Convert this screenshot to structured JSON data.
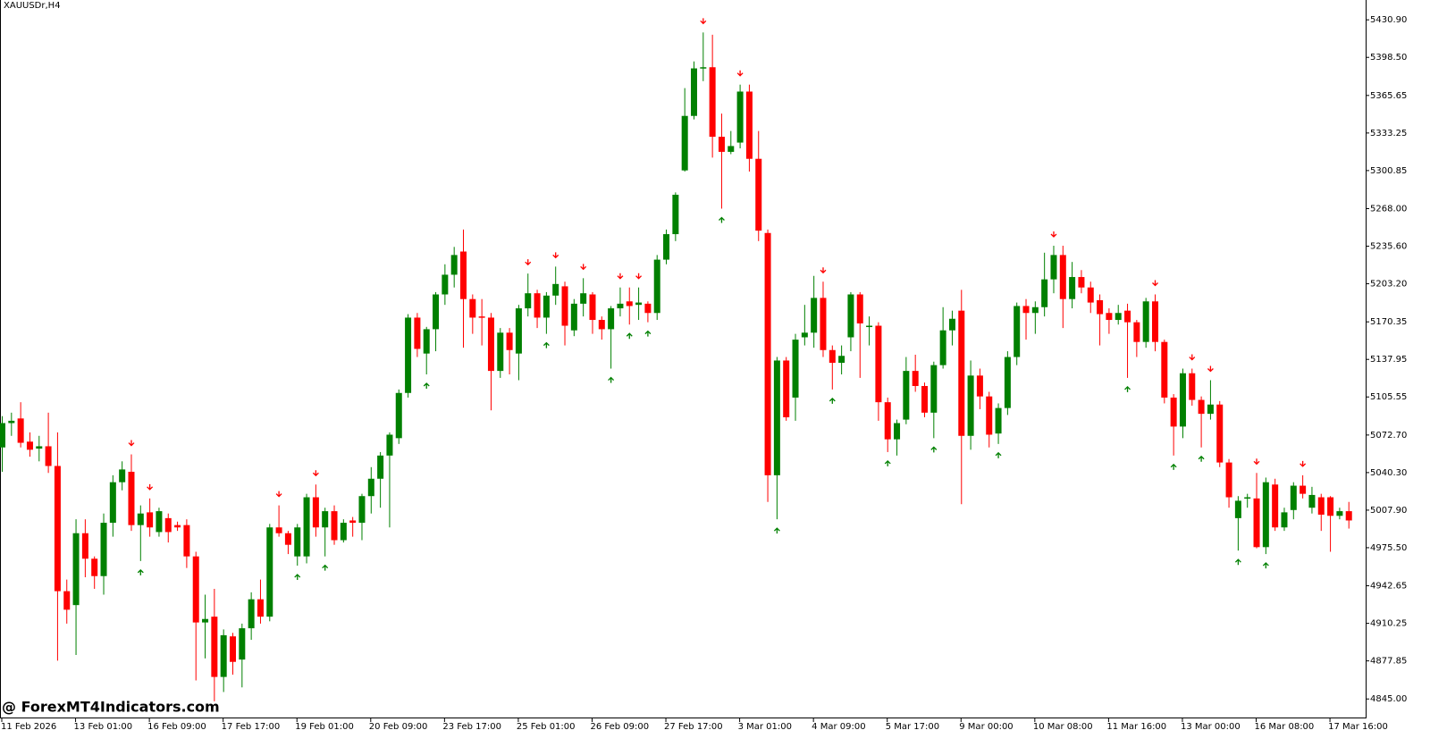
{
  "chart_data": {
    "type": "candlestick",
    "title": "XAUUSDr,H4",
    "watermark": "@ ForexMT4Indicators.com",
    "up_color": "#008000",
    "down_color": "#ff0000",
    "categories": [
      "11 Feb 2026",
      null,
      null,
      null,
      null,
      null,
      null,
      null,
      "13 Feb 01:00",
      null,
      null,
      null,
      null,
      null,
      null,
      null,
      "16 Feb 09:00",
      null,
      null,
      null,
      null,
      null,
      null,
      null,
      "17 Feb 17:00",
      null,
      null,
      null,
      null,
      null,
      null,
      null,
      "19 Feb 01:00",
      null,
      null,
      null,
      null,
      null,
      null,
      null,
      "20 Feb 09:00",
      null,
      null,
      null,
      null,
      null,
      null,
      null,
      "23 Feb 17:00",
      null,
      null,
      null,
      null,
      null,
      null,
      null,
      "25 Feb 01:00",
      null,
      null,
      null,
      null,
      null,
      null,
      null,
      "26 Feb 09:00",
      null,
      null,
      null,
      null,
      null,
      null,
      null,
      "27 Feb 17:00",
      null,
      null,
      null,
      null,
      null,
      null,
      null,
      "3 Mar 01:00",
      null,
      null,
      null,
      null,
      null,
      null,
      null,
      "4 Mar 09:00",
      null,
      null,
      null,
      null,
      null,
      null,
      null,
      "5 Mar 17:00",
      null,
      null,
      null,
      null,
      null,
      null,
      null,
      "9 Mar 00:00",
      null,
      null,
      null,
      null,
      null,
      null,
      null,
      "10 Mar 08:00",
      null,
      null,
      null,
      null,
      null,
      null,
      null,
      "11 Mar 16:00",
      null,
      null,
      null,
      null,
      null,
      null,
      null,
      "13 Mar 00:00",
      null,
      null,
      null,
      null,
      null,
      null,
      null,
      "16 Mar 08:00",
      null,
      null,
      null,
      null,
      null,
      null,
      null,
      "17 Mar 16:00",
      null,
      null
    ],
    "open": [
      5062,
      5083,
      5087,
      5067,
      5061,
      5063,
      5046,
      4938,
      4926,
      4988,
      4966,
      4951,
      4997,
      5032,
      5041,
      4995,
      5006,
      4989,
      5001,
      4995,
      4995,
      4968,
      4911,
      4916,
      4864,
      4899,
      4879,
      4906,
      4931,
      4916,
      4993,
      4988,
      4968,
      4968,
      5019,
      4993,
      5007,
      4982,
      4999,
      4997,
      5020,
      5035,
      5055,
      5070,
      5109,
      5174,
      5143,
      5164,
      5194,
      5211,
      5231,
      5190,
      5175,
      5174,
      5128,
      5161,
      5143,
      5182,
      5195,
      5174,
      5193,
      5201,
      5163,
      5186,
      5194,
      5172,
      5164,
      5182,
      5188,
      5185,
      5186,
      5178,
      5224,
      5246,
      5301,
      5348,
      5389,
      5390,
      5330,
      5317,
      5325,
      5369,
      5311,
      5247,
      5038,
      5137,
      5105,
      5157,
      5161,
      5191,
      5146,
      5135,
      5157,
      5194,
      5166,
      5167,
      5101,
      5069,
      5086,
      5128,
      5115,
      5092,
      5133,
      5163,
      5180,
      5072,
      5124,
      5106,
      5074,
      5096,
      5140,
      5184,
      5178,
      5183,
      5207,
      5228,
      5190,
      5209,
      5200,
      5189,
      5178,
      5172,
      5180,
      5170,
      5153,
      5188,
      5153,
      5105,
      5080,
      5126,
      5103,
      5091,
      5099,
      5049,
      5001,
      5018,
      5018,
      4976,
      5030,
      4993,
      5008,
      5029,
      5010,
      5019,
      5019,
      5003,
      5007
    ],
    "high": [
      5089,
      5092,
      5101,
      5075,
      5072,
      5092,
      5075,
      4948,
      5000,
      5000,
      4968,
      5005,
      5038,
      5050,
      5056,
      5012,
      5018,
      5010,
      5005,
      4998,
      5000,
      4972,
      4935,
      4940,
      4905,
      4902,
      4910,
      4937,
      4948,
      4996,
      5012,
      4990,
      4996,
      5022,
      5030,
      5010,
      5012,
      5000,
      5002,
      5022,
      5045,
      5058,
      5075,
      5112,
      5177,
      5178,
      5166,
      5196,
      5220,
      5235,
      5250,
      5194,
      5190,
      5178,
      5165,
      5165,
      5185,
      5212,
      5198,
      5196,
      5218,
      5205,
      5190,
      5208,
      5196,
      5175,
      5184,
      5200,
      5200,
      5200,
      5188,
      5228,
      5250,
      5282,
      5372,
      5395,
      5420,
      5418,
      5350,
      5335,
      5375,
      5375,
      5335,
      5250,
      5140,
      5140,
      5160,
      5185,
      5210,
      5205,
      5150,
      5150,
      5196,
      5196,
      5175,
      5170,
      5105,
      5086,
      5140,
      5142,
      5118,
      5136,
      5183,
      5180,
      5198,
      5137,
      5130,
      5110,
      5100,
      5145,
      5187,
      5190,
      5188,
      5230,
      5236,
      5236,
      5222,
      5215,
      5205,
      5194,
      5182,
      5185,
      5186,
      5172,
      5191,
      5194,
      5155,
      5108,
      5130,
      5130,
      5106,
      5120,
      5102,
      5052,
      5020,
      5022,
      5040,
      5036,
      5035,
      5010,
      5032,
      5038,
      5028,
      5022,
      5020,
      5010,
      5015
    ],
    "low": [
      5041,
      5072,
      5062,
      5054,
      5050,
      5040,
      4878,
      4910,
      4883,
      4950,
      4940,
      4935,
      4985,
      5025,
      4990,
      4964,
      4985,
      4985,
      4980,
      4990,
      4958,
      4861,
      4880,
      4843,
      4851,
      4866,
      4855,
      4896,
      4910,
      4912,
      4985,
      4970,
      4960,
      4962,
      4985,
      4968,
      4978,
      4980,
      4985,
      4982,
      5005,
      5010,
      4993,
      5065,
      5105,
      5140,
      5125,
      5145,
      5185,
      5200,
      5148,
      5160,
      5150,
      5094,
      5122,
      5125,
      5120,
      5175,
      5165,
      5160,
      5185,
      5150,
      5158,
      5175,
      5160,
      5155,
      5130,
      5175,
      5168,
      5172,
      5170,
      5172,
      5220,
      5240,
      5300,
      5345,
      5378,
      5312,
      5268,
      5315,
      5320,
      5300,
      5240,
      5015,
      5000,
      5085,
      5085,
      5150,
      5148,
      5140,
      5112,
      5125,
      5145,
      5122,
      5150,
      5085,
      5058,
      5055,
      5082,
      5110,
      5088,
      5070,
      5130,
      5150,
      5013,
      5060,
      5095,
      5062,
      5065,
      5090,
      5133,
      5155,
      5160,
      5175,
      5195,
      5165,
      5182,
      5195,
      5178,
      5150,
      5160,
      5168,
      5122,
      5140,
      5148,
      5145,
      5100,
      5055,
      5070,
      5098,
      5062,
      5086,
      5045,
      5010,
      4973,
      5010,
      4975,
      4970,
      4990,
      4990,
      5000,
      5018,
      5005,
      4990,
      4972,
      5000,
      4992
    ],
    "close": [
      5083,
      5085,
      5066,
      5060,
      5063,
      5046,
      4938,
      4922,
      4988,
      4966,
      4951,
      4997,
      5032,
      5043,
      4995,
      5005,
      4993,
      5007,
      4989,
      4993,
      4968,
      4911,
      4914,
      4864,
      4900,
      4877,
      4906,
      4931,
      4916,
      4993,
      4988,
      4978,
      4993,
      5019,
      4993,
      5007,
      4982,
      4997,
      4997,
      5020,
      5035,
      5055,
      5073,
      5109,
      5174,
      5147,
      5164,
      5194,
      5211,
      5228,
      5190,
      5174,
      5174,
      5128,
      5161,
      5146,
      5182,
      5195,
      5174,
      5193,
      5203,
      5167,
      5186,
      5195,
      5172,
      5164,
      5182,
      5186,
      5184,
      5187,
      5178,
      5224,
      5246,
      5280,
      5348,
      5389,
      5390,
      5330,
      5317,
      5322,
      5369,
      5311,
      5249,
      5038,
      5137,
      5088,
      5155,
      5161,
      5191,
      5146,
      5135,
      5141,
      5194,
      5169,
      5167,
      5101,
      5069,
      5083,
      5128,
      5115,
      5092,
      5133,
      5163,
      5173,
      5072,
      5124,
      5106,
      5073,
      5096,
      5140,
      5184,
      5178,
      5183,
      5207,
      5228,
      5190,
      5209,
      5200,
      5187,
      5177,
      5172,
      5178,
      5170,
      5153,
      5188,
      5153,
      5105,
      5080,
      5126,
      5103,
      5091,
      5099,
      5049,
      5019,
      5016,
      5019,
      4976,
      5032,
      4993,
      5006,
      5029,
      5022,
      5021,
      5004,
      5003,
      5007,
      4999
    ],
    "sell_arrows": [
      14,
      16,
      30,
      34,
      57,
      60,
      63,
      67,
      69,
      76,
      80,
      89,
      114,
      125,
      129,
      131,
      136,
      141
    ],
    "buy_arrows": [
      15,
      32,
      35,
      46,
      59,
      66,
      68,
      70,
      78,
      84,
      90,
      96,
      101,
      108,
      122,
      127,
      130,
      134,
      137
    ],
    "ylim": [
      4829,
      5448
    ],
    "yticks": [
      {
        "value": 5430.9,
        "label": "5430.90"
      },
      {
        "value": 5398.5,
        "label": "5398.50"
      },
      {
        "value": 5365.65,
        "label": "5365.65"
      },
      {
        "value": 5333.25,
        "label": "5333.25"
      },
      {
        "value": 5300.85,
        "label": "5300.85"
      },
      {
        "value": 5268,
        "label": "5268.00"
      },
      {
        "value": 5235.6,
        "label": "5235.60"
      },
      {
        "value": 5203.2,
        "label": "5203.20"
      },
      {
        "value": 5170.35,
        "label": "5170.35"
      },
      {
        "value": 5137.95,
        "label": "5137.95"
      },
      {
        "value": 5105.55,
        "label": "5105.55"
      },
      {
        "value": 5072.7,
        "label": "5072.70"
      },
      {
        "value": 5040.3,
        "label": "5040.30"
      },
      {
        "value": 5007.9,
        "label": "5007.90"
      },
      {
        "value": 4975.5,
        "label": "4975.50"
      },
      {
        "value": 4942.65,
        "label": "4942.65"
      },
      {
        "value": 4910.25,
        "label": "4910.25"
      },
      {
        "value": 4877.85,
        "label": "4877.85"
      },
      {
        "value": 4845,
        "label": "4845.00"
      }
    ]
  }
}
